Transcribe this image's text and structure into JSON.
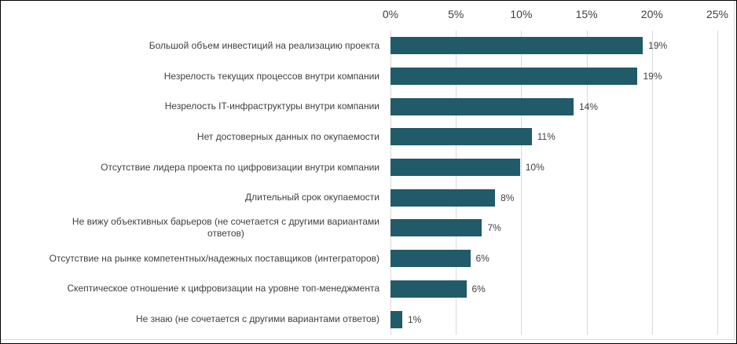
{
  "chart_data": {
    "type": "bar",
    "orientation": "horizontal",
    "title": "",
    "categories": [
      "Большой объем инвестиций на реализацию проекта",
      "Незрелость текущих процессов внутри компании",
      "Незрелость IT-инфраструктуры внутри компании",
      "Нет достоверных данных по окупаемости",
      "Отсутствие лидера проекта по цифровизации внутри компании",
      "Длительный срок окупаемости",
      "Не вижу объективных барьеров (не сочетается с другими вариантами ответов)",
      "Отсутствие на рынке компетентных/надежных поставщиков (интеграторов)",
      "Скептическое отношение к цифровизации на уровне топ-менеджмента",
      "Не знаю (не сочетается с другими вариантами ответов)"
    ],
    "category_lines": [
      [
        "Большой объем инвестиций на реализацию проекта"
      ],
      [
        "Незрелость текущих процессов внутри компании"
      ],
      [
        "Незрелость IT-инфраструктуры внутри компании"
      ],
      [
        "Нет достоверных данных по окупаемости"
      ],
      [
        "Отсутствие лидера проекта по цифровизации внутри компании"
      ],
      [
        "Длительный срок окупаемости"
      ],
      [
        "Не вижу объективных барьеров (не сочетается с другими вариантами",
        "ответов)"
      ],
      [
        "Отсутствие на рынке компетентных/надежных поставщиков (интеграторов)"
      ],
      [
        "Скептическое отношение к цифровизации на уровне топ-менеджмента"
      ],
      [
        "Не знаю (не сочетается с другими вариантами ответов)"
      ]
    ],
    "values": [
      19,
      19,
      14,
      11,
      10,
      8,
      7,
      6,
      6,
      1
    ],
    "value_labels": [
      "19%",
      "19%",
      "14%",
      "11%",
      "10%",
      "8%",
      "7%",
      "6%",
      "6%",
      "1%"
    ],
    "plot_values": [
      19.3,
      18.9,
      14.0,
      10.8,
      9.9,
      8.0,
      7.0,
      6.1,
      5.8,
      0.9
    ],
    "axis": {
      "position": "top",
      "ticks": [
        "0%",
        "5%",
        "10%",
        "15%",
        "20%",
        "25%"
      ],
      "tick_values": [
        0,
        5,
        10,
        15,
        20,
        25
      ],
      "max": 25
    },
    "grid": true,
    "legend": false,
    "xlabel": "",
    "ylabel": "",
    "colors": {
      "bar": "#215A68",
      "gridline": "#D9D9D9",
      "text": "#404040",
      "chart_border": "#D9D9D9",
      "outer_border": "#000000"
    }
  }
}
